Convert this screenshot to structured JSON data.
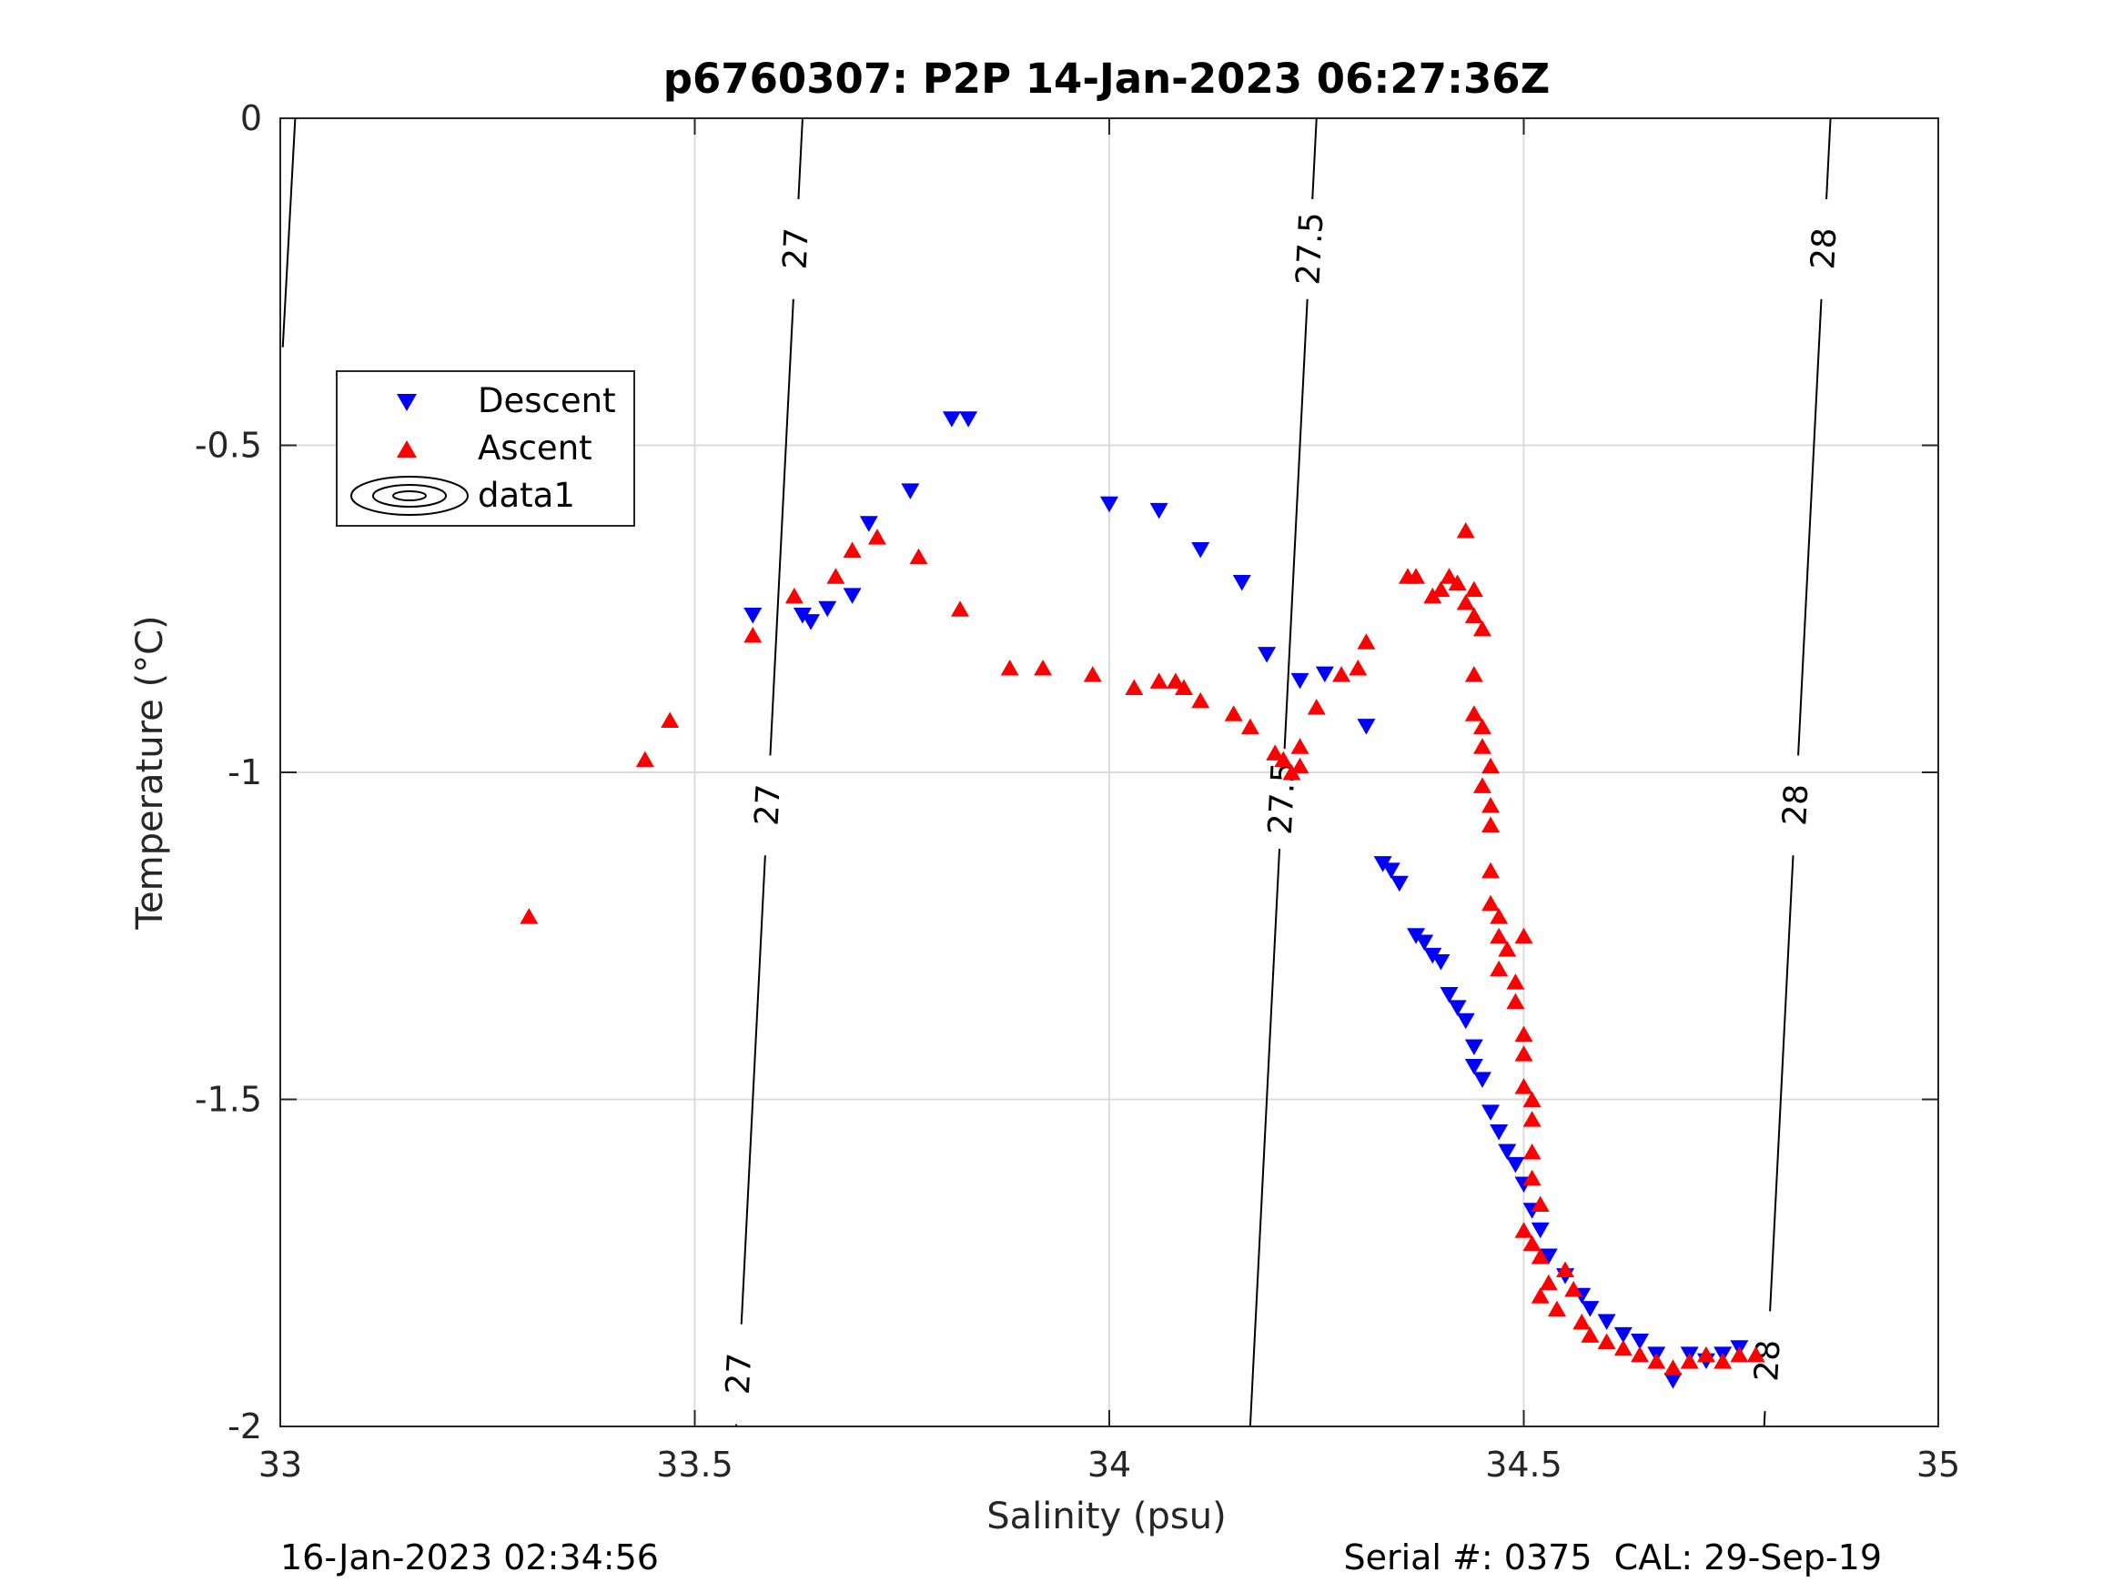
{
  "chart_data": {
    "type": "scatter",
    "title": "p6760307: P2P 14-Jan-2023 06:27:36Z",
    "xlabel": "Salinity (psu)",
    "ylabel": "Temperature (°C)",
    "xlim": [
      33,
      35
    ],
    "ylim": [
      -2,
      0
    ],
    "x_ticks": [
      "33",
      "33.5",
      "34",
      "34.5",
      "35"
    ],
    "y_ticks": [
      "0",
      "-0.5",
      "-1",
      "-1.5",
      "-2"
    ],
    "grid": true,
    "legend_position": "upper-left",
    "series": [
      {
        "name": "Descent",
        "marker": "triangle-down",
        "color": "#0000ff",
        "points": [
          [
            33.57,
            -0.76
          ],
          [
            33.63,
            -0.76
          ],
          [
            33.64,
            -0.77
          ],
          [
            33.66,
            -0.75
          ],
          [
            33.69,
            -0.73
          ],
          [
            33.71,
            -0.62
          ],
          [
            33.76,
            -0.57
          ],
          [
            33.81,
            -0.46
          ],
          [
            33.83,
            -0.46
          ],
          [
            34.0,
            -0.59
          ],
          [
            34.06,
            -0.6
          ],
          [
            34.11,
            -0.66
          ],
          [
            34.16,
            -0.71
          ],
          [
            34.19,
            -0.82
          ],
          [
            34.23,
            -0.86
          ],
          [
            34.26,
            -0.85
          ],
          [
            34.31,
            -0.93
          ],
          [
            34.33,
            -1.14
          ],
          [
            34.34,
            -1.15
          ],
          [
            34.35,
            -1.17
          ],
          [
            34.37,
            -1.25
          ],
          [
            34.38,
            -1.26
          ],
          [
            34.39,
            -1.28
          ],
          [
            34.4,
            -1.29
          ],
          [
            34.41,
            -1.34
          ],
          [
            34.42,
            -1.36
          ],
          [
            34.43,
            -1.38
          ],
          [
            34.44,
            -1.42
          ],
          [
            34.44,
            -1.45
          ],
          [
            34.45,
            -1.47
          ],
          [
            34.46,
            -1.52
          ],
          [
            34.47,
            -1.55
          ],
          [
            34.48,
            -1.58
          ],
          [
            34.49,
            -1.6
          ],
          [
            34.5,
            -1.63
          ],
          [
            34.51,
            -1.67
          ],
          [
            34.52,
            -1.7
          ],
          [
            34.53,
            -1.74
          ],
          [
            34.55,
            -1.77
          ],
          [
            34.57,
            -1.8
          ],
          [
            34.58,
            -1.82
          ],
          [
            34.6,
            -1.84
          ],
          [
            34.62,
            -1.86
          ],
          [
            34.64,
            -1.87
          ],
          [
            34.66,
            -1.89
          ],
          [
            34.68,
            -1.93
          ],
          [
            34.7,
            -1.89
          ],
          [
            34.72,
            -1.9
          ],
          [
            34.74,
            -1.89
          ],
          [
            34.76,
            -1.88
          ]
        ]
      },
      {
        "name": "Ascent",
        "marker": "triangle-up",
        "color": "#ff0000",
        "points": [
          [
            33.3,
            -1.22
          ],
          [
            33.44,
            -0.98
          ],
          [
            33.47,
            -0.92
          ],
          [
            33.57,
            -0.79
          ],
          [
            33.62,
            -0.73
          ],
          [
            33.67,
            -0.7
          ],
          [
            33.69,
            -0.66
          ],
          [
            33.72,
            -0.64
          ],
          [
            33.77,
            -0.67
          ],
          [
            33.82,
            -0.75
          ],
          [
            33.88,
            -0.84
          ],
          [
            33.92,
            -0.84
          ],
          [
            33.98,
            -0.85
          ],
          [
            34.03,
            -0.87
          ],
          [
            34.06,
            -0.86
          ],
          [
            34.08,
            -0.86
          ],
          [
            34.09,
            -0.87
          ],
          [
            34.11,
            -0.89
          ],
          [
            34.15,
            -0.91
          ],
          [
            34.17,
            -0.93
          ],
          [
            34.2,
            -0.97
          ],
          [
            34.21,
            -0.98
          ],
          [
            34.22,
            -1.0
          ],
          [
            34.23,
            -0.99
          ],
          [
            34.23,
            -0.96
          ],
          [
            34.25,
            -0.9
          ],
          [
            34.28,
            -0.85
          ],
          [
            34.3,
            -0.84
          ],
          [
            34.31,
            -0.8
          ],
          [
            34.36,
            -0.7
          ],
          [
            34.37,
            -0.7
          ],
          [
            34.39,
            -0.73
          ],
          [
            34.4,
            -0.72
          ],
          [
            34.41,
            -0.7
          ],
          [
            34.42,
            -0.71
          ],
          [
            34.43,
            -0.63
          ],
          [
            34.43,
            -0.74
          ],
          [
            34.44,
            -0.72
          ],
          [
            34.44,
            -0.76
          ],
          [
            34.45,
            -0.78
          ],
          [
            34.44,
            -0.85
          ],
          [
            34.44,
            -0.91
          ],
          [
            34.45,
            -0.93
          ],
          [
            34.45,
            -0.96
          ],
          [
            34.46,
            -0.99
          ],
          [
            34.45,
            -1.02
          ],
          [
            34.46,
            -1.05
          ],
          [
            34.46,
            -1.08
          ],
          [
            34.46,
            -1.15
          ],
          [
            34.46,
            -1.2
          ],
          [
            34.47,
            -1.22
          ],
          [
            34.47,
            -1.25
          ],
          [
            34.48,
            -1.27
          ],
          [
            34.47,
            -1.3
          ],
          [
            34.49,
            -1.32
          ],
          [
            34.49,
            -1.35
          ],
          [
            34.5,
            -1.4
          ],
          [
            34.5,
            -1.43
          ],
          [
            34.5,
            -1.25
          ],
          [
            34.5,
            -1.48
          ],
          [
            34.51,
            -1.5
          ],
          [
            34.51,
            -1.53
          ],
          [
            34.51,
            -1.58
          ],
          [
            34.51,
            -1.62
          ],
          [
            34.52,
            -1.66
          ],
          [
            34.5,
            -1.7
          ],
          [
            34.51,
            -1.72
          ],
          [
            34.52,
            -1.74
          ],
          [
            34.53,
            -1.78
          ],
          [
            34.52,
            -1.8
          ],
          [
            34.54,
            -1.82
          ],
          [
            34.55,
            -1.76
          ],
          [
            34.56,
            -1.79
          ],
          [
            34.57,
            -1.84
          ],
          [
            34.58,
            -1.86
          ],
          [
            34.6,
            -1.87
          ],
          [
            34.62,
            -1.88
          ],
          [
            34.64,
            -1.89
          ],
          [
            34.66,
            -1.9
          ],
          [
            34.68,
            -1.91
          ],
          [
            34.7,
            -1.9
          ],
          [
            34.72,
            -1.89
          ],
          [
            34.74,
            -1.9
          ],
          [
            34.76,
            -1.89
          ],
          [
            34.78,
            -1.89
          ]
        ]
      }
    ],
    "contours": {
      "legend_name": "data1",
      "levels": [
        {
          "label": "27",
          "points": [
            [
              33.63,
              0
            ],
            [
              33.55,
              -2
            ]
          ],
          "label_positions": [
            [
              33.62,
              -0.2
            ],
            [
              33.58,
              -1.05
            ],
            [
              33.55,
              -1.92
            ]
          ]
        },
        {
          "label": "27.5",
          "points": [
            [
              34.25,
              0
            ],
            [
              34.17,
              -2
            ]
          ],
          "label_positions": [
            [
              34.24,
              -0.2
            ],
            [
              34.2,
              -1.04
            ]
          ]
        },
        {
          "label": "28",
          "points": [
            [
              34.87,
              0
            ],
            [
              34.79,
              -2
            ]
          ],
          "label_positions": [
            [
              34.86,
              -0.2
            ],
            [
              34.82,
              -1.05
            ],
            [
              34.79,
              -1.9
            ]
          ]
        }
      ],
      "edge_segment": [
        [
          33.003,
          -0.35
        ],
        [
          33.018,
          0
        ]
      ]
    }
  },
  "footer": {
    "left": "16-Jan-2023 02:34:56",
    "right": "Serial #: 0375  CAL: 29-Sep-19"
  },
  "legend": {
    "descent": "Descent",
    "ascent": "Ascent",
    "contour": "data1"
  }
}
